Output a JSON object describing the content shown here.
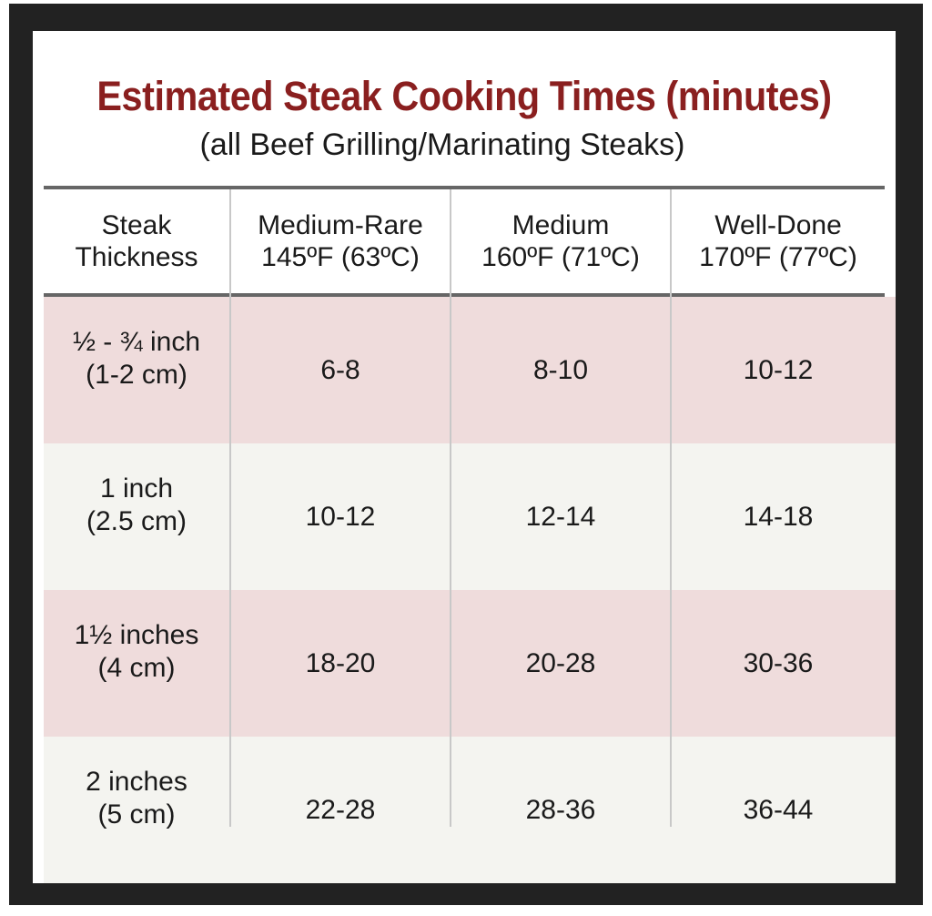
{
  "title": "Estimated Steak Cooking Times (minutes)",
  "subtitle": "(all Beef Grilling/Marinating Steaks)",
  "columns": [
    {
      "line1": "Steak",
      "line2": "Thickness"
    },
    {
      "line1": "Medium-Rare",
      "line2": "145ºF (63ºC)"
    },
    {
      "line1": "Medium",
      "line2": "160ºF (71ºC)"
    },
    {
      "line1": "Well-Done",
      "line2": "170ºF (77ºC)"
    }
  ],
  "rows": [
    {
      "thickness_line1": "½ - ¾ inch",
      "thickness_line2": "(1-2 cm)",
      "medium_rare": "6-8",
      "medium": "8-10",
      "well_done": "10-12"
    },
    {
      "thickness_line1": "1 inch",
      "thickness_line2": "(2.5 cm)",
      "medium_rare": "10-12",
      "medium": "12-14",
      "well_done": "14-18"
    },
    {
      "thickness_line1": "1½ inches",
      "thickness_line2": "(4 cm)",
      "medium_rare": "18-20",
      "medium": "20-28",
      "well_done": "30-36"
    },
    {
      "thickness_line1": "2 inches",
      "thickness_line2": "(5 cm)",
      "medium_rare": "22-28",
      "medium": "28-36",
      "well_done": "36-44"
    }
  ],
  "colors": {
    "title": "#8a1f1f",
    "frame": "#222222",
    "row_pink": "#efdcdc",
    "row_light": "#f4f4f0"
  }
}
